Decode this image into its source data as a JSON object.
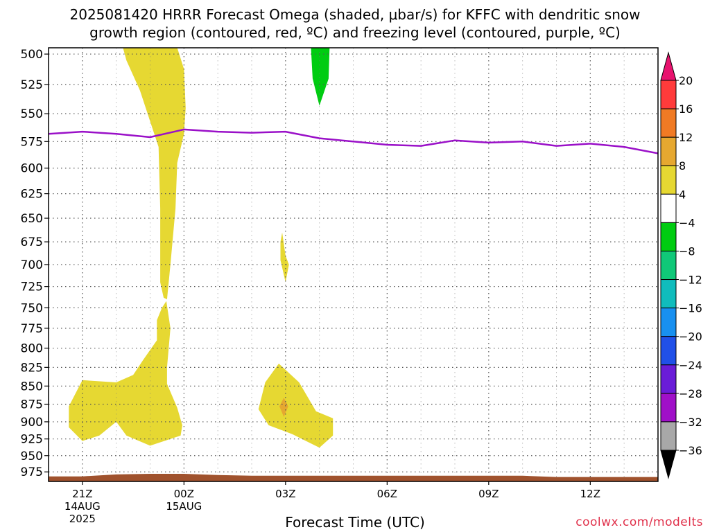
{
  "title_line1": "2025081420 HRRR Forecast Omega (shaded, μbar/s) for KFFC with dendritic snow",
  "title_line2": "growth region (contoured, red, ºC) and freezing level (contoured, purple, ºC)",
  "xlabel": "Forecast Time (UTC)",
  "credit": "coolwx.com/modelts",
  "chart_data": {
    "type": "heatmap",
    "title": "2025081420 HRRR Forecast Omega (shaded, μbar/s) for KFFC with dendritic snow growth region (contoured, red, ºC) and freezing level (contoured, purple, ºC)",
    "xlabel": "Forecast Time (UTC)",
    "ylabel": "",
    "x_ticks": [
      {
        "h": 1,
        "label": [
          "21Z",
          "14AUG",
          "2025"
        ]
      },
      {
        "h": 4,
        "label": [
          "00Z",
          "15AUG"
        ]
      },
      {
        "h": 7,
        "label": [
          "03Z"
        ]
      },
      {
        "h": 10,
        "label": [
          "06Z"
        ]
      },
      {
        "h": 13,
        "label": [
          "09Z"
        ]
      },
      {
        "h": 16,
        "label": [
          "12Z"
        ]
      }
    ],
    "xlim": [
      0,
      18
    ],
    "y_ticks": [
      500,
      525,
      550,
      575,
      600,
      625,
      650,
      675,
      700,
      725,
      750,
      775,
      800,
      825,
      850,
      875,
      900,
      925,
      950,
      975
    ],
    "ylim": [
      495,
      990
    ],
    "y_scale": "log-pressure",
    "grid": true,
    "colorbar": {
      "levels": [
        20,
        16,
        12,
        8,
        4,
        -4,
        -8,
        -12,
        -16,
        -20,
        -24,
        -28,
        -32,
        -36
      ],
      "bins": [
        {
          "from": 16,
          "to": 20,
          "color": "#ff3b3b"
        },
        {
          "from": 12,
          "to": 16,
          "color": "#f07a24"
        },
        {
          "from": 8,
          "to": 12,
          "color": "#e6a830"
        },
        {
          "from": 4,
          "to": 8,
          "color": "#e6d832"
        },
        {
          "from": -4,
          "to": 4,
          "color": "#ffffff"
        },
        {
          "from": -8,
          "to": -4,
          "color": "#00cc11"
        },
        {
          "from": -12,
          "to": -8,
          "color": "#10c878"
        },
        {
          "from": -16,
          "to": -12,
          "color": "#10bcbc"
        },
        {
          "from": -20,
          "to": -16,
          "color": "#1890f0"
        },
        {
          "from": -24,
          "to": -20,
          "color": "#2050e8"
        },
        {
          "from": -28,
          "to": -24,
          "color": "#6a1cd8"
        },
        {
          "from": -32,
          "to": -28,
          "color": "#a010c8"
        },
        {
          "from": -36,
          "to": -32,
          "color": "#a8a8a8"
        }
      ],
      "top_arrow_color": "#e8126e",
      "bottom_arrow_color": "#000000"
    },
    "freezing_level": {
      "color": "#9a10c8",
      "points": [
        [
          0,
          568
        ],
        [
          1,
          566
        ],
        [
          2,
          568
        ],
        [
          3,
          571
        ],
        [
          4,
          564
        ],
        [
          5,
          566
        ],
        [
          6,
          567
        ],
        [
          7,
          566
        ],
        [
          8,
          572
        ],
        [
          9,
          575
        ],
        [
          10,
          578
        ],
        [
          11,
          579
        ],
        [
          12,
          574
        ],
        [
          13,
          576
        ],
        [
          14,
          575
        ],
        [
          15,
          579
        ],
        [
          16,
          577
        ],
        [
          17,
          580
        ],
        [
          18,
          586
        ]
      ]
    },
    "shaded_regions": [
      {
        "value_bin": "4 to 8",
        "color": "#e6d832",
        "points": [
          [
            2.2,
            495
          ],
          [
            3.8,
            495
          ],
          [
            4.0,
            512
          ],
          [
            4.05,
            545
          ],
          [
            4.0,
            568
          ],
          [
            3.8,
            595
          ],
          [
            3.75,
            640
          ],
          [
            3.6,
            700
          ],
          [
            3.5,
            740
          ],
          [
            3.4,
            738
          ],
          [
            3.3,
            720
          ],
          [
            3.3,
            690
          ],
          [
            3.3,
            640
          ],
          [
            3.25,
            580
          ],
          [
            2.7,
            530
          ],
          [
            2.3,
            505
          ]
        ]
      },
      {
        "value_bin": "4 to 8",
        "color": "#e6d832",
        "points": [
          [
            3.48,
            742
          ],
          [
            3.6,
            775
          ],
          [
            3.5,
            825
          ],
          [
            3.5,
            847
          ],
          [
            3.8,
            880
          ],
          [
            3.95,
            905
          ],
          [
            3.9,
            920
          ],
          [
            3.0,
            935
          ],
          [
            2.3,
            920
          ],
          [
            2.0,
            900
          ],
          [
            1.5,
            920
          ],
          [
            1.0,
            928
          ],
          [
            0.6,
            908
          ],
          [
            0.6,
            878
          ],
          [
            1.0,
            842
          ],
          [
            2.0,
            845
          ],
          [
            2.5,
            835
          ],
          [
            2.8,
            815
          ],
          [
            3.2,
            790
          ],
          [
            3.2,
            765
          ],
          [
            3.35,
            750
          ]
        ]
      },
      {
        "value_bin": "4 to 8",
        "color": "#e6d832",
        "points": [
          [
            6.9,
            665
          ],
          [
            7.0,
            690
          ],
          [
            7.1,
            700
          ],
          [
            7.0,
            720
          ],
          [
            6.85,
            695
          ],
          [
            6.85,
            675
          ]
        ]
      },
      {
        "value_bin": "4 to 8",
        "color": "#e6d832",
        "points": [
          [
            6.8,
            820
          ],
          [
            7.4,
            845
          ],
          [
            7.9,
            885
          ],
          [
            8.4,
            895
          ],
          [
            8.4,
            920
          ],
          [
            8.0,
            938
          ],
          [
            7.2,
            918
          ],
          [
            6.5,
            905
          ],
          [
            6.2,
            882
          ],
          [
            6.4,
            845
          ]
        ]
      },
      {
        "value_bin": "8 to 12",
        "color": "#e6a830",
        "points": [
          [
            6.95,
            866
          ],
          [
            7.08,
            878
          ],
          [
            6.95,
            893
          ],
          [
            6.82,
            878
          ]
        ]
      },
      {
        "value_bin": "-8 to -4",
        "color": "#00cc11",
        "points": [
          [
            7.75,
            495
          ],
          [
            8.3,
            495
          ],
          [
            8.27,
            520
          ],
          [
            8.0,
            543
          ],
          [
            7.8,
            520
          ]
        ]
      }
    ],
    "terrain": {
      "color": "#a0522d",
      "points": [
        [
          0,
          982
        ],
        [
          1,
          982
        ],
        [
          2,
          979
        ],
        [
          3,
          978
        ],
        [
          4,
          978
        ],
        [
          5,
          980
        ],
        [
          6,
          981
        ],
        [
          7,
          981
        ],
        [
          8,
          981
        ],
        [
          9,
          981
        ],
        [
          10,
          981
        ],
        [
          11,
          981
        ],
        [
          12,
          981
        ],
        [
          13,
          981
        ],
        [
          14,
          981
        ],
        [
          15,
          983
        ],
        [
          16,
          983
        ],
        [
          17,
          983
        ],
        [
          18,
          983
        ]
      ]
    }
  }
}
